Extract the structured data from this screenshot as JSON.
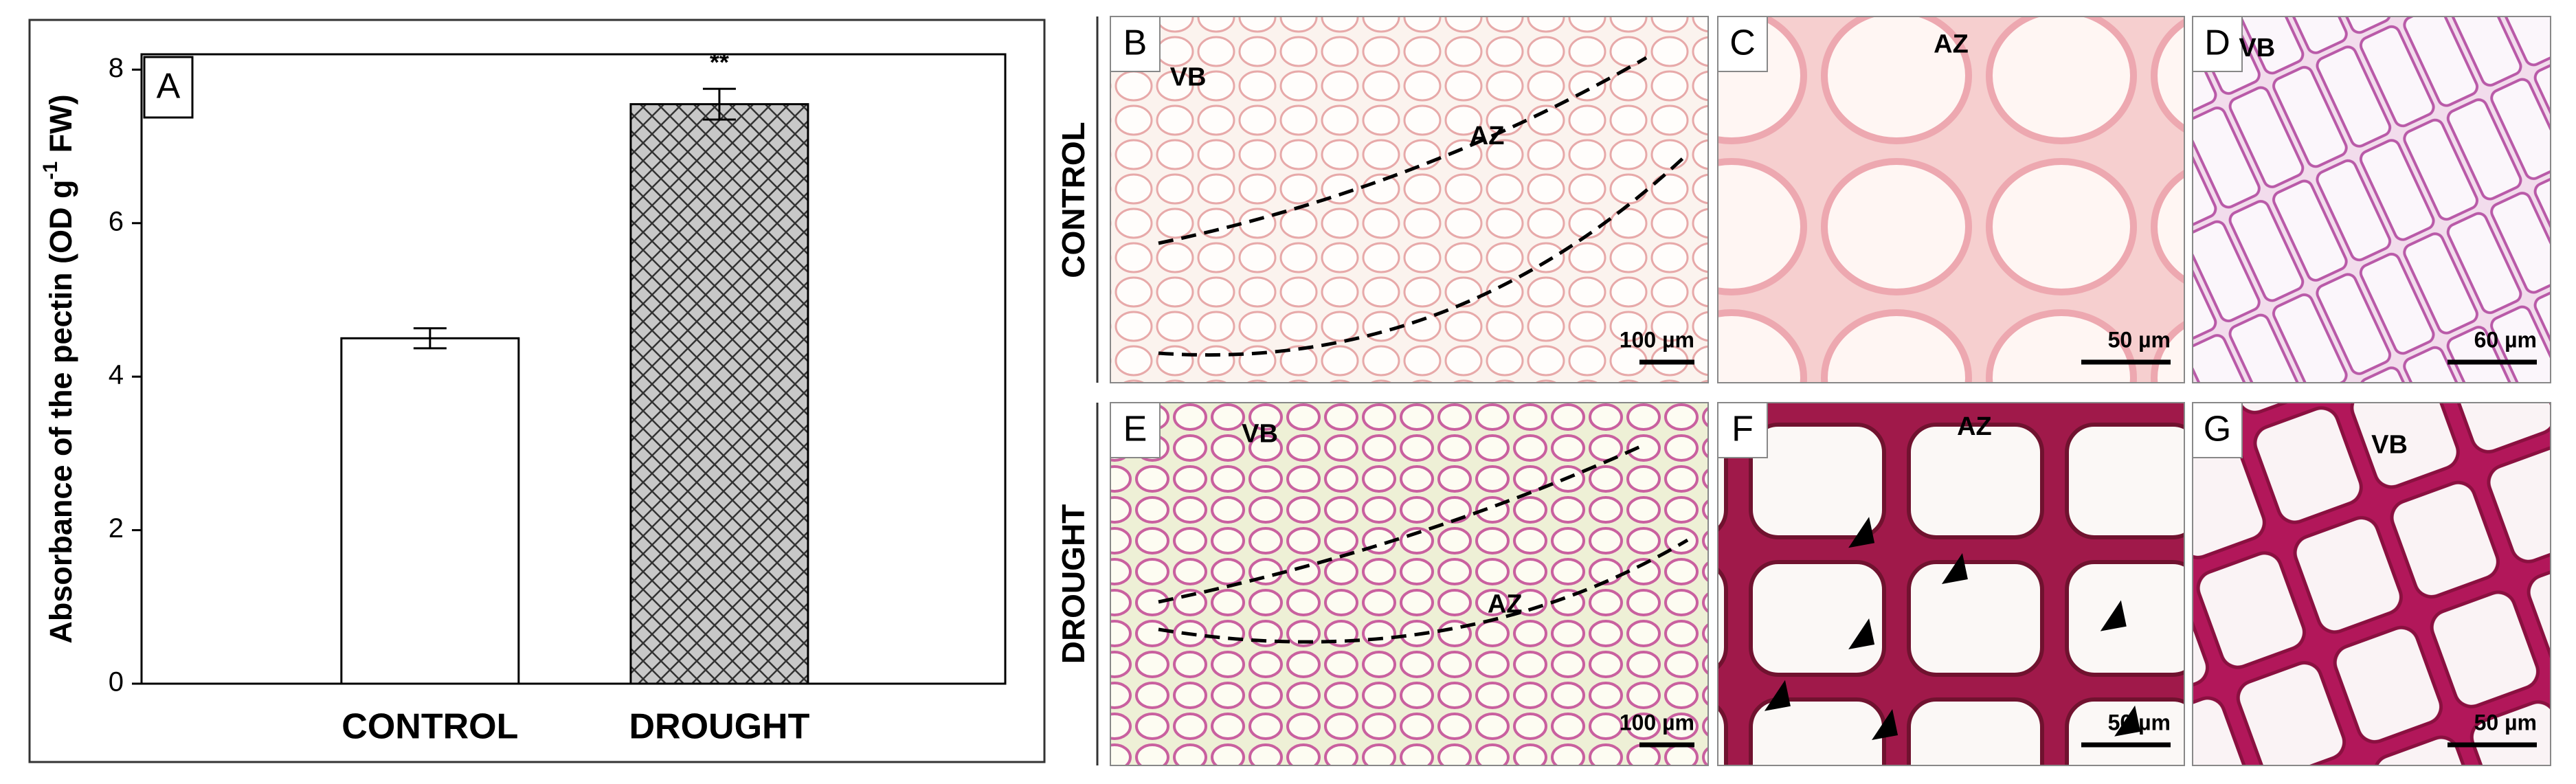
{
  "chart_data": {
    "type": "bar",
    "panel_label": "A",
    "ylabel_parts": [
      "Absorbance of the pectin (OD g",
      "-1",
      " FW)"
    ],
    "categories": [
      "CONTROL",
      "DROUGHT"
    ],
    "values": [
      4.5,
      7.55
    ],
    "errors": [
      0.13,
      0.2
    ],
    "colors": [
      "#ffffff",
      "#c8c8c8"
    ],
    "hatch": [
      false,
      true
    ],
    "annotation": "**",
    "ylim": [
      0,
      8.2
    ],
    "yticks": [
      0,
      2,
      4,
      6,
      8
    ]
  },
  "row_labels": [
    "CONTROL",
    "DROUGHT"
  ],
  "panels": [
    {
      "label": "B",
      "texts": [
        "VB",
        "AZ"
      ],
      "scale_bar": "100 µm"
    },
    {
      "label": "C",
      "texts": [
        "AZ"
      ],
      "scale_bar": "50 µm"
    },
    {
      "label": "D",
      "texts": [
        "VB"
      ],
      "scale_bar": "60 µm"
    },
    {
      "label": "E",
      "texts": [
        "VB",
        "AZ"
      ],
      "scale_bar": "100 µm"
    },
    {
      "label": "F",
      "texts": [
        "AZ"
      ],
      "scale_bar": "50 µm"
    },
    {
      "label": "G",
      "texts": [
        "VB"
      ],
      "scale_bar": "50 µm"
    }
  ]
}
